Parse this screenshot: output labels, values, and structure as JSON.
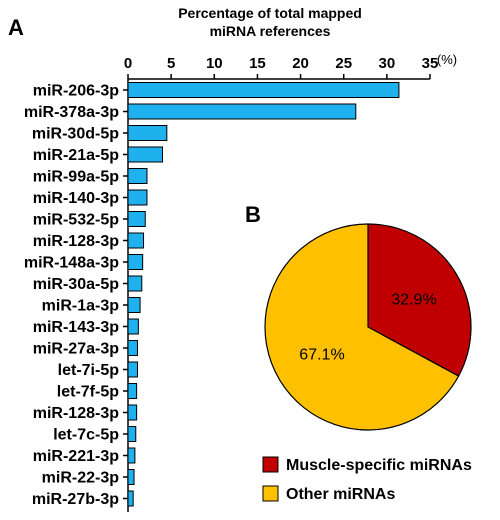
{
  "panels": {
    "a": "A",
    "b": "B"
  },
  "colors": {
    "bar": "#1fb0ee",
    "muscle": "#c00000",
    "other": "#ffc000",
    "stroke": "#000000"
  },
  "chart_data": [
    {
      "type": "bar",
      "orientation": "horizontal",
      "title_lines": [
        "Percentage of total mapped",
        "miRNA references"
      ],
      "unit": "(%)",
      "xlim": [
        0,
        35
      ],
      "ticks": [
        0,
        5,
        10,
        15,
        20,
        25,
        30,
        35
      ],
      "categories": [
        "miR-206-3p",
        "miR-378a-3p",
        "miR-30d-5p",
        "miR-21a-5p",
        "miR-99a-5p",
        "miR-140-3p",
        "miR-532-5p",
        "miR-128-3p",
        "miR-148a-3p",
        "miR-30a-5p",
        "miR-1a-3p",
        "miR-143-3p",
        "miR-27a-3p",
        "let-7i-5p",
        "let-7f-5p",
        "miR-128-3p",
        "let-7c-5p",
        "miR-221-3p",
        "miR-22-3p",
        "miR-27b-3p"
      ],
      "values": [
        31.4,
        26.4,
        4.5,
        4.0,
        2.2,
        2.2,
        2.0,
        1.8,
        1.7,
        1.6,
        1.4,
        1.2,
        1.1,
        1.1,
        1.0,
        1.0,
        0.9,
        0.8,
        0.7,
        0.6
      ]
    },
    {
      "type": "pie",
      "slices": [
        {
          "name": "Muscle-specific miRNAs",
          "value": 32.9,
          "label": "32.9%",
          "color": "#c00000"
        },
        {
          "name": "Other miRNAs",
          "value": 67.1,
          "label": "67.1%",
          "color": "#ffc000"
        }
      ]
    }
  ]
}
